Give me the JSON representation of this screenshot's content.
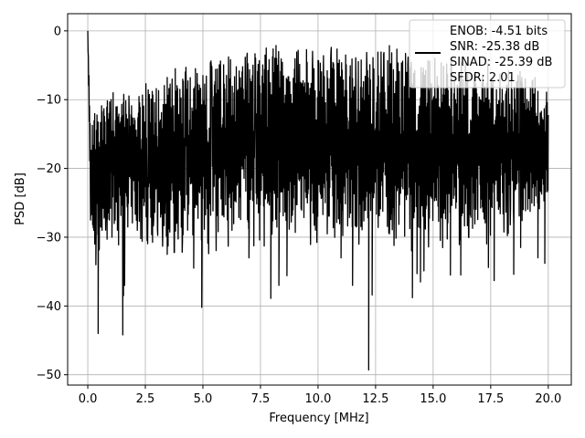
{
  "chart_data": {
    "type": "line",
    "title": "",
    "xlabel": "Frequency [MHz]",
    "ylabel": "PSD [dB]",
    "xlim": [
      -0.875,
      21.0
    ],
    "ylim": [
      -51.5,
      2.5
    ],
    "xticks": [
      0.0,
      2.5,
      5.0,
      7.5,
      10.0,
      12.5,
      15.0,
      17.5,
      20.0
    ],
    "xtick_labels": [
      "0.0",
      "2.5",
      "5.0",
      "7.5",
      "10.0",
      "12.5",
      "15.0",
      "17.5",
      "20.0"
    ],
    "yticks": [
      0,
      -10,
      -20,
      -30,
      -40,
      -50
    ],
    "ytick_labels": [
      "0",
      "−10",
      "−20",
      "−30",
      "−40",
      "−50"
    ],
    "grid": true,
    "legend_position": "top-right",
    "legend": [
      "ENOB: -4.51 bits",
      "SNR: -25.38 dB",
      "SINAD: -25.39 dB",
      "SFDR: 2.01"
    ],
    "series": [
      {
        "color": "#000000",
        "x": [
          0.0,
          0.02,
          0.05,
          0.1,
          0.15,
          0.2,
          0.3,
          0.5,
          0.8,
          1.0,
          1.5,
          2.0,
          2.5,
          3.0,
          3.5,
          4.0,
          4.5,
          5.0,
          5.5,
          6.0,
          6.5,
          7.0,
          7.5,
          8.0,
          8.5,
          9.0,
          9.5,
          10.0,
          10.5,
          11.0,
          11.5,
          12.0,
          12.5,
          13.0,
          13.5,
          14.0,
          14.5,
          15.0,
          15.5,
          16.0,
          16.5,
          17.0,
          17.5,
          18.0,
          18.5,
          19.0,
          19.5,
          20.0
        ],
        "upper": [
          0.0,
          -2.0,
          -6.0,
          -13.0,
          -13.0,
          -13.0,
          -11.5,
          -11.0,
          -10.5,
          -10.0,
          -10.0,
          -9.5,
          -9.0,
          -8.0,
          -7.5,
          -7.0,
          -6.5,
          -5.5,
          -5.5,
          -5.0,
          -5.0,
          -4.5,
          -4.0,
          -3.5,
          -3.5,
          -4.0,
          -4.0,
          -4.5,
          -3.5,
          -3.5,
          -4.0,
          -4.0,
          -4.0,
          -3.5,
          -4.0,
          -4.5,
          -5.0,
          -5.5,
          -5.0,
          -6.0,
          -5.5,
          -6.5,
          -6.0,
          -7.0,
          -7.0,
          -7.5,
          -8.0,
          -9.0
        ],
        "lower": [
          0.0,
          -5.0,
          -12.0,
          -27.0,
          -30.0,
          -31.0,
          -31.0,
          -29.0,
          -28.0,
          -28.0,
          -29.0,
          -28.0,
          -28.0,
          -28.0,
          -29.0,
          -30.0,
          -30.0,
          -30.0,
          -29.0,
          -29.0,
          -29.0,
          -29.0,
          -28.5,
          -28.5,
          -28.0,
          -28.0,
          -28.5,
          -28.0,
          -29.0,
          -28.0,
          -29.0,
          -28.5,
          -29.0,
          -28.5,
          -29.0,
          -29.0,
          -30.0,
          -29.0,
          -29.0,
          -29.0,
          -28.5,
          -28.0,
          -28.0,
          -27.0,
          -27.0,
          -27.0,
          -26.0,
          -25.0
        ],
        "dips": [
          [
            0.12,
            -27.5
          ],
          [
            0.3,
            -31.0
          ],
          [
            0.35,
            -34.0
          ],
          [
            0.45,
            -44.0
          ],
          [
            0.75,
            -27.0
          ],
          [
            0.9,
            -25.5
          ],
          [
            1.05,
            -30.0
          ],
          [
            1.15,
            -28.0
          ],
          [
            1.52,
            -44.2
          ],
          [
            1.6,
            -37.0
          ],
          [
            1.55,
            -38.5
          ],
          [
            0.62,
            -29.0
          ],
          [
            0.82,
            -26.0
          ],
          [
            3.35,
            -26.5
          ],
          [
            3.45,
            -32.5
          ],
          [
            4.95,
            -40.2
          ],
          [
            4.6,
            -34.5
          ],
          [
            7.0,
            -33.0
          ],
          [
            7.95,
            -38.9
          ],
          [
            8.3,
            -37.0
          ],
          [
            8.65,
            -35.6
          ],
          [
            11.0,
            -33.0
          ],
          [
            11.5,
            -37.0
          ],
          [
            12.2,
            -49.3
          ],
          [
            12.35,
            -38.4
          ],
          [
            14.1,
            -38.8
          ],
          [
            14.3,
            -35.3
          ],
          [
            14.45,
            -36.5
          ],
          [
            14.6,
            -34.9
          ],
          [
            15.75,
            -35.5
          ],
          [
            16.2,
            -35.5
          ],
          [
            17.4,
            -34.4
          ],
          [
            17.65,
            -36.3
          ],
          [
            18.5,
            -35.4
          ],
          [
            19.55,
            -33.0
          ],
          [
            19.85,
            -33.8
          ],
          [
            13.1,
            -29.5
          ],
          [
            10.4,
            -29.5
          ],
          [
            6.1,
            -29.0
          ],
          [
            2.15,
            -29.0
          ],
          [
            18.8,
            -31.5
          ]
        ],
        "peaks": [
          [
            7.75,
            -2.5
          ],
          [
            8.2,
            -4.0
          ],
          [
            10.0,
            -4.3
          ],
          [
            13.2,
            -3.2
          ],
          [
            13.8,
            -3.3
          ],
          [
            11.2,
            -3.5
          ],
          [
            6.2,
            -4.2
          ],
          [
            3.8,
            -5.5
          ],
          [
            5.55,
            -5.6
          ],
          [
            2.8,
            -8.8
          ],
          [
            1.1,
            -9.0
          ],
          [
            16.4,
            -4.6
          ],
          [
            17.9,
            -6.3
          ],
          [
            19.3,
            -7.3
          ],
          [
            12.6,
            -3.1
          ]
        ]
      }
    ]
  }
}
